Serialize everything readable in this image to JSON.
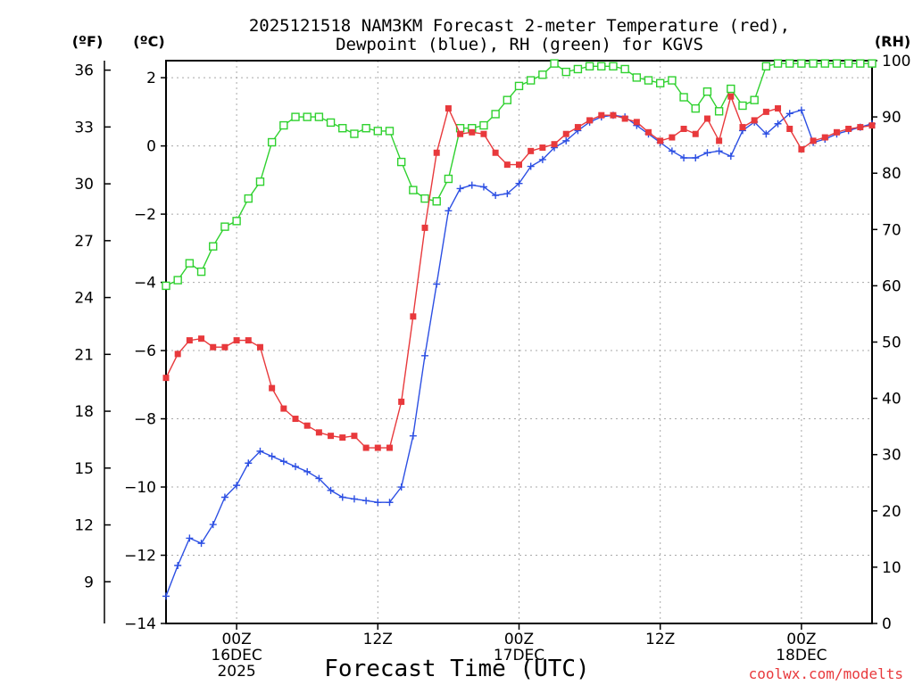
{
  "chart_data": {
    "type": "line",
    "title_lines": [
      "2025121518 NAM3KM Forecast 2-meter Temperature (red),",
      "Dewpoint (blue), RH (green) for KGVS"
    ],
    "xlabel": "Forecast Time (UTC)",
    "credit": "coolwx.com/modelts",
    "left_unit_f": "(ºF)",
    "left_unit_c": "(ºC)",
    "right_unit": "(RH)",
    "x_unit": "forecast hour from 2025121518",
    "xlim": [
      0,
      60
    ],
    "x_ticks": [
      {
        "x": 6,
        "lines": [
          "00Z",
          "16DEC",
          "2025"
        ]
      },
      {
        "x": 18,
        "lines": [
          "12Z"
        ]
      },
      {
        "x": 30,
        "lines": [
          "00Z",
          "17DEC"
        ]
      },
      {
        "x": 42,
        "lines": [
          "12Z"
        ]
      },
      {
        "x": 54,
        "lines": [
          "00Z",
          "18DEC"
        ]
      }
    ],
    "y_celsius": {
      "range": [
        -14.0,
        2.5
      ],
      "ticks": [
        2,
        0,
        -2,
        -4,
        -6,
        -8,
        -10,
        -12,
        -14
      ]
    },
    "y_fahrenheit": {
      "ticks": [
        36,
        33,
        30,
        27,
        24,
        21,
        18,
        15,
        12,
        9
      ]
    },
    "y_rh": {
      "range": [
        0,
        100
      ],
      "ticks": [
        100,
        90,
        80,
        70,
        60,
        50,
        40,
        30,
        20,
        10,
        0
      ]
    },
    "series": [
      {
        "name": "Temperature",
        "unit": "C",
        "color": "#e8393c",
        "marker": "filled-square",
        "x": [
          0,
          1,
          2,
          3,
          4,
          5,
          6,
          7,
          8,
          9,
          10,
          11,
          12,
          13,
          14,
          15,
          16,
          17,
          18,
          19,
          20,
          21,
          22,
          23,
          24,
          25,
          26,
          27,
          28,
          29,
          30,
          31,
          32,
          33,
          34,
          35,
          36,
          37,
          38,
          39,
          40,
          41,
          42,
          43,
          44,
          45,
          46,
          47,
          48,
          49,
          50,
          51,
          52,
          53,
          54,
          55,
          56,
          57,
          58,
          59,
          60
        ],
        "values": [
          -6.8,
          -6.1,
          -5.7,
          -5.65,
          -5.9,
          -5.9,
          -5.7,
          -5.7,
          -5.9,
          -7.1,
          -7.7,
          -8.0,
          -8.2,
          -8.4,
          -8.5,
          -8.55,
          -8.5,
          -8.85,
          -8.85,
          -8.85,
          -7.5,
          -5.0,
          -2.4,
          -0.2,
          1.1,
          0.35,
          0.4,
          0.35,
          -0.2,
          -0.55,
          -0.55,
          -0.15,
          -0.05,
          0.05,
          0.35,
          0.55,
          0.75,
          0.9,
          0.9,
          0.8,
          0.7,
          0.4,
          0.15,
          0.25,
          0.5,
          0.35,
          0.8,
          0.15,
          1.45,
          0.55,
          0.75,
          1.0,
          1.1,
          0.5,
          -0.1,
          0.15,
          0.25,
          0.4,
          0.5,
          0.55,
          0.6
        ]
      },
      {
        "name": "Dewpoint",
        "unit": "C",
        "color": "#2c4fe3",
        "marker": "plus",
        "x": [
          0,
          1,
          2,
          3,
          4,
          5,
          6,
          7,
          8,
          9,
          10,
          11,
          12,
          13,
          14,
          15,
          16,
          17,
          18,
          19,
          20,
          21,
          22,
          23,
          24,
          25,
          26,
          27,
          28,
          29,
          30,
          31,
          32,
          33,
          34,
          35,
          36,
          37,
          38,
          39,
          40,
          41,
          42,
          43,
          44,
          45,
          46,
          47,
          48,
          49,
          50,
          51,
          52,
          53,
          54,
          55,
          56,
          57,
          58,
          59,
          60
        ],
        "values": [
          -13.2,
          -12.3,
          -11.5,
          -11.65,
          -11.1,
          -10.3,
          -9.95,
          -9.3,
          -8.95,
          -9.1,
          -9.25,
          -9.4,
          -9.55,
          -9.75,
          -10.1,
          -10.3,
          -10.35,
          -10.4,
          -10.45,
          -10.45,
          -10.0,
          -8.5,
          -6.15,
          -4.05,
          -1.9,
          -1.25,
          -1.15,
          -1.2,
          -1.45,
          -1.4,
          -1.1,
          -0.6,
          -0.4,
          -0.05,
          0.15,
          0.45,
          0.7,
          0.85,
          0.9,
          0.85,
          0.6,
          0.35,
          0.1,
          -0.15,
          -0.35,
          -0.35,
          -0.2,
          -0.15,
          -0.3,
          0.45,
          0.7,
          0.35,
          0.65,
          0.95,
          1.05,
          0.1,
          0.2,
          0.35,
          0.45,
          0.55,
          0.65
        ]
      },
      {
        "name": "RH",
        "unit": "%",
        "color": "#2fd12f",
        "marker": "open-square",
        "x": [
          0,
          1,
          2,
          3,
          4,
          5,
          6,
          7,
          8,
          9,
          10,
          11,
          12,
          13,
          14,
          15,
          16,
          17,
          18,
          19,
          20,
          21,
          22,
          23,
          24,
          25,
          26,
          27,
          28,
          29,
          30,
          31,
          32,
          33,
          34,
          35,
          36,
          37,
          38,
          39,
          40,
          41,
          42,
          43,
          44,
          45,
          46,
          47,
          48,
          49,
          50,
          51,
          52,
          53,
          54,
          55,
          56,
          57,
          58,
          59,
          60
        ],
        "values": [
          60,
          61,
          64,
          62.5,
          67,
          70.5,
          71.5,
          75.5,
          78.5,
          85.5,
          88.5,
          90,
          90,
          90,
          89,
          88,
          87,
          88,
          87.5,
          87.5,
          82,
          77,
          75.5,
          75,
          79,
          88,
          88,
          88.5,
          90.5,
          93,
          95.5,
          96.5,
          97.5,
          99.5,
          98,
          98.5,
          99,
          99,
          99,
          98.5,
          97,
          96.5,
          96,
          96.5,
          93.5,
          91.5,
          94.5,
          91,
          95,
          92,
          93,
          99,
          99.5,
          99.5,
          99.5,
          99.5,
          99.5,
          99.5,
          99.5,
          99.5,
          99.5
        ]
      }
    ],
    "grid": true
  }
}
